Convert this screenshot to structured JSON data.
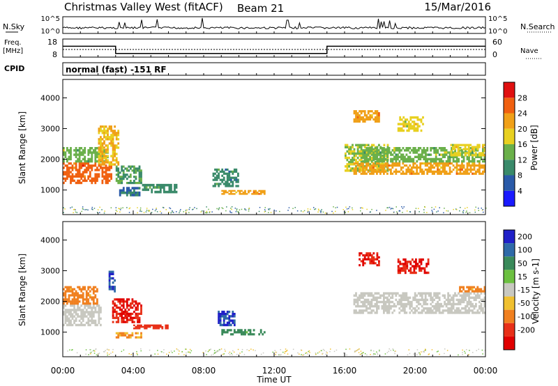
{
  "header": {
    "title": "Christmas Valley West (fitACF)",
    "beam": "Beam 21",
    "date": "15/Mar/2016"
  },
  "noise_panel": {
    "left_label": "N.Sky",
    "left_ticks": [
      "10^5",
      "10^0"
    ],
    "right_label": "N.Search",
    "right_ticks": [
      "10^5",
      "10^0"
    ]
  },
  "freq_panel": {
    "left_label_line1": "Freq.",
    "left_label_line2": "[MHz]",
    "left_ticks": [
      "18",
      "8"
    ],
    "right_label": "Nave",
    "right_ticks": [
      "60",
      "0"
    ],
    "cpid_label": "CPID",
    "cpid_text": "normal (fast) -151 RF"
  },
  "power_panel": {
    "ylabel": "Slant Range [km]",
    "yticks": [
      "1000",
      "2000",
      "3000",
      "4000"
    ],
    "colorbar_label": "Power [dB]",
    "colorbar_ticks": [
      "4",
      "8",
      "12",
      "16",
      "20",
      "24",
      "28"
    ],
    "colors": [
      "#1a1aff",
      "#2a5aa8",
      "#3a8a6a",
      "#6ab04a",
      "#e8d020",
      "#f0a018",
      "#f06010",
      "#e01010"
    ]
  },
  "velocity_panel": {
    "ylabel": "Slant Range [km]",
    "yticks": [
      "1000",
      "2000",
      "3000",
      "4000"
    ],
    "colorbar_label": "Velocity [m s-1]",
    "colorbar_ticks": [
      "200",
      "100",
      "50",
      "15",
      "-15",
      "-50",
      "-100",
      "-200"
    ],
    "colors": [
      "#2020c8",
      "#2f6aa8",
      "#3a8a5a",
      "#6cc040",
      "#c8c8c0",
      "#f0c030",
      "#f08020",
      "#e83018",
      "#e00000"
    ]
  },
  "x_axis": {
    "ticks": [
      "00:00",
      "04:00",
      "08:00",
      "12:00",
      "16:00",
      "20:00",
      "00:00"
    ],
    "label": "Time UT"
  },
  "chart_data": {
    "type": "heatmap",
    "title": "Christmas Valley West (fitACF)",
    "xlabel": "Time UT",
    "ylabel": "Slant Range [km]",
    "xlim_hours": [
      0,
      24
    ],
    "ylim_km": [
      200,
      4600
    ],
    "freq_mhz_segments": [
      {
        "start_h": 0,
        "end_h": 3.0,
        "freq": 14
      },
      {
        "start_h": 3.0,
        "end_h": 15.0,
        "freq": 10
      },
      {
        "start_h": 15.0,
        "end_h": 24.0,
        "freq": 14
      }
    ],
    "power_regions": [
      {
        "t0": 0.0,
        "t1": 2.8,
        "r0": 1200,
        "r1": 1900,
        "value": 26
      },
      {
        "t0": 0.0,
        "t1": 2.6,
        "r0": 1900,
        "r1": 2400,
        "value": 14
      },
      {
        "t0": 2.0,
        "t1": 3.2,
        "r0": 1800,
        "r1": 3100,
        "value": 20
      },
      {
        "t0": 3.0,
        "t1": 4.5,
        "r0": 1200,
        "r1": 1800,
        "value": 12
      },
      {
        "t0": 3.2,
        "t1": 4.4,
        "r0": 800,
        "r1": 1100,
        "value": 8
      },
      {
        "t0": 4.5,
        "t1": 6.5,
        "r0": 900,
        "r1": 1200,
        "value": 10
      },
      {
        "t0": 8.5,
        "t1": 10.0,
        "r0": 1100,
        "r1": 1700,
        "value": 10
      },
      {
        "t0": 9.0,
        "t1": 11.5,
        "r0": 850,
        "r1": 1000,
        "value": 22
      },
      {
        "t0": 16.0,
        "t1": 18.5,
        "r0": 1600,
        "r1": 2500,
        "value": 16
      },
      {
        "t0": 16.5,
        "t1": 24.0,
        "r0": 1500,
        "r1": 1900,
        "value": 22
      },
      {
        "t0": 17.0,
        "t1": 24.0,
        "r0": 1900,
        "r1": 2400,
        "value": 14
      },
      {
        "t0": 16.5,
        "t1": 18.0,
        "r0": 3200,
        "r1": 3600,
        "value": 22
      },
      {
        "t0": 19.0,
        "t1": 20.5,
        "r0": 2900,
        "r1": 3400,
        "value": 18
      },
      {
        "t0": 22.0,
        "t1": 24.0,
        "r0": 2100,
        "r1": 2500,
        "value": 18
      }
    ],
    "velocity_regions": [
      {
        "t0": 0.0,
        "t1": 2.2,
        "r0": 1200,
        "r1": 1900,
        "value": 0
      },
      {
        "t0": 0.0,
        "t1": 2.0,
        "r0": 1900,
        "r1": 2500,
        "value": -60
      },
      {
        "t0": 2.6,
        "t1": 3.0,
        "r0": 2300,
        "r1": 3000,
        "value": 200
      },
      {
        "t0": 2.8,
        "t1": 4.5,
        "r0": 1300,
        "r1": 2100,
        "value": -200
      },
      {
        "t0": 3.0,
        "t1": 4.5,
        "r0": 800,
        "r1": 1000,
        "value": -50
      },
      {
        "t0": 4.0,
        "t1": 6.0,
        "r0": 1100,
        "r1": 1250,
        "value": -150
      },
      {
        "t0": 8.8,
        "t1": 9.8,
        "r0": 1200,
        "r1": 1700,
        "value": 200
      },
      {
        "t0": 9.0,
        "t1": 11.5,
        "r0": 900,
        "r1": 1100,
        "value": 60
      },
      {
        "t0": 16.5,
        "t1": 24.0,
        "r0": 1600,
        "r1": 2300,
        "value": 0
      },
      {
        "t0": 16.8,
        "t1": 18.0,
        "r0": 3150,
        "r1": 3600,
        "value": -200
      },
      {
        "t0": 19.0,
        "t1": 20.8,
        "r0": 2900,
        "r1": 3400,
        "value": -200
      },
      {
        "t0": 22.5,
        "t1": 24.0,
        "r0": 2300,
        "r1": 2500,
        "value": -60
      }
    ]
  }
}
